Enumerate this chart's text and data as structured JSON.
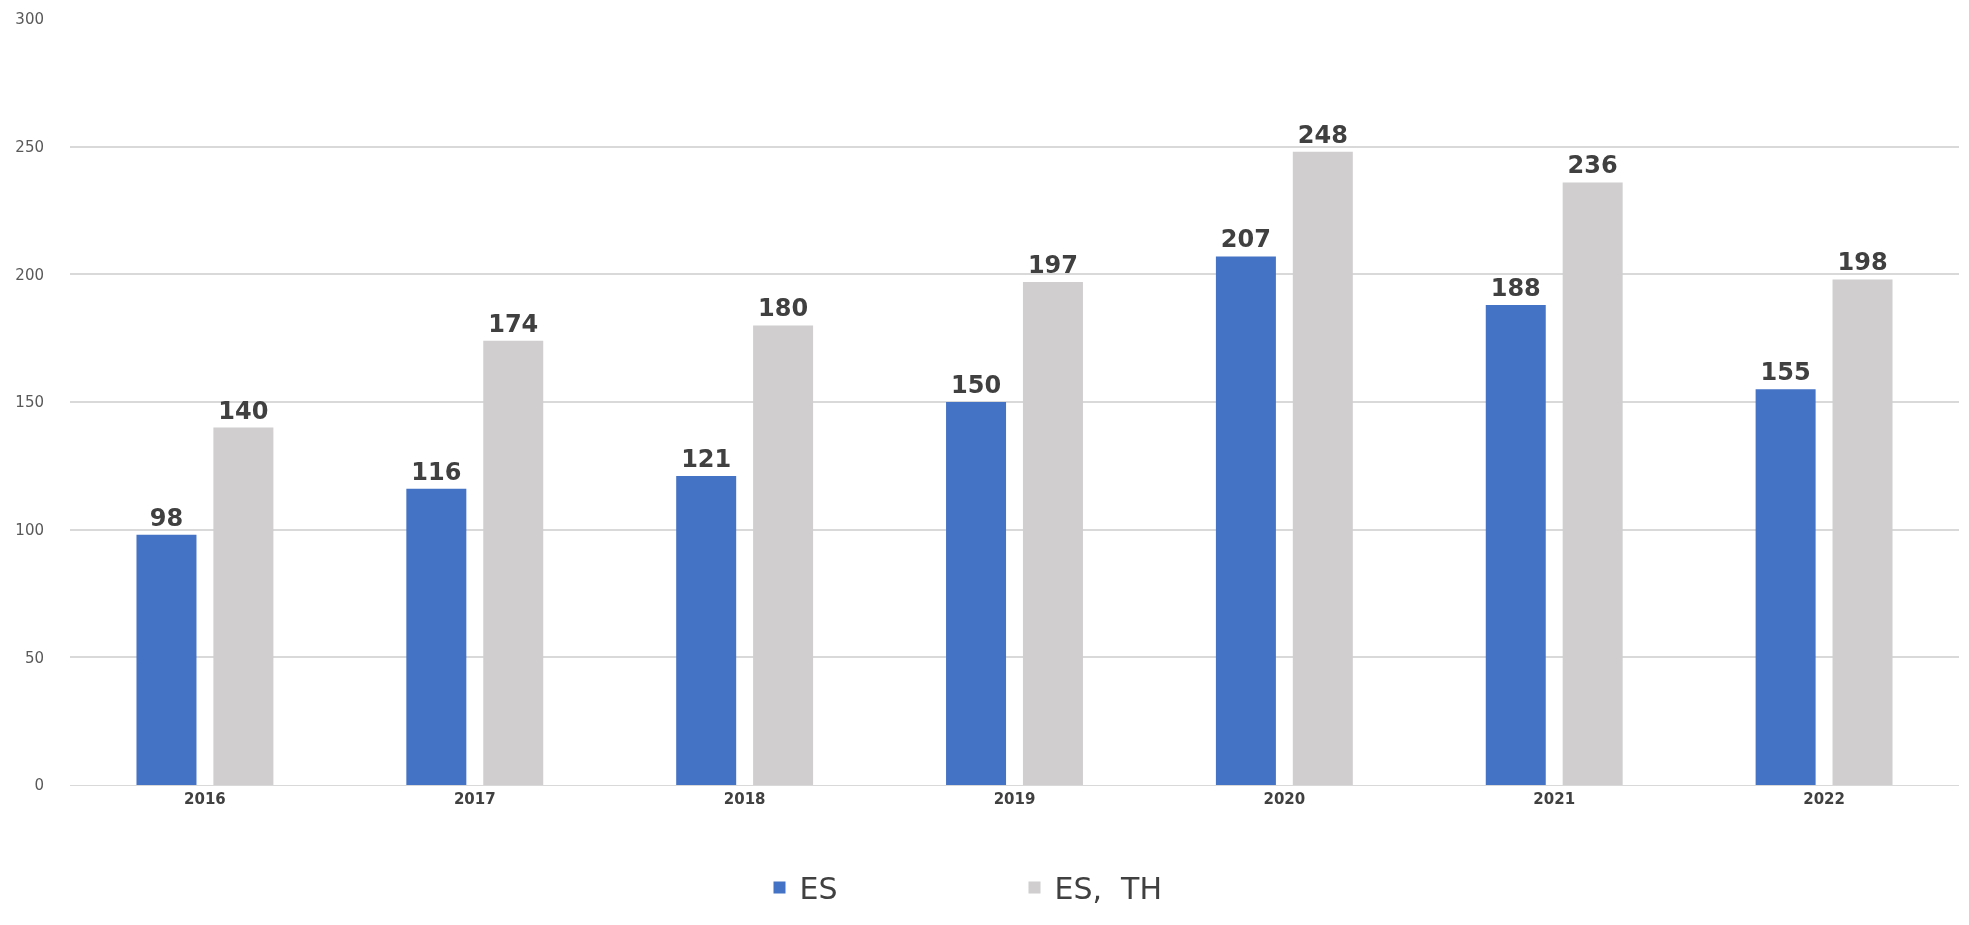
{
  "chart_data": {
    "type": "bar",
    "categories": [
      "2016",
      "2017",
      "2018",
      "2019",
      "2020",
      "2021",
      "2022"
    ],
    "series": [
      {
        "name": "ES",
        "color": "#4472c4",
        "values": [
          98,
          116,
          121,
          150,
          207,
          188,
          155
        ]
      },
      {
        "name": "ES,  TH",
        "color": "#d0cece",
        "values": [
          140,
          174,
          180,
          197,
          248,
          236,
          198
        ]
      }
    ],
    "ylim": [
      0,
      300
    ],
    "yticks": [
      0,
      50,
      100,
      150,
      200,
      250,
      300
    ],
    "grid": "y",
    "legend": "bottom",
    "data_labels": true
  }
}
